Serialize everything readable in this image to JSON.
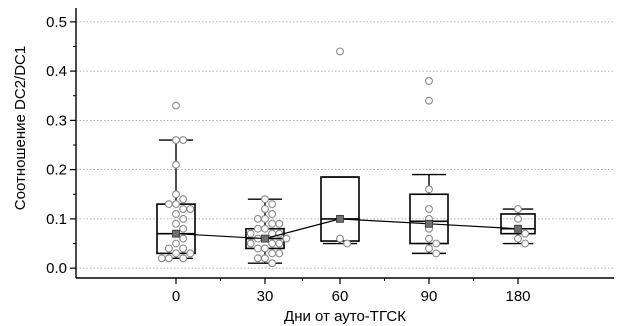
{
  "chart_data": {
    "type": "box",
    "xlabel": "Дни от ауто-ТГСК",
    "ylabel": "Соотношение DC2/DC1",
    "ylim": [
      -0.02,
      0.52
    ],
    "yticks": [
      0.0,
      0.1,
      0.2,
      0.3,
      0.4,
      0.5
    ],
    "ytick_labels": [
      "0.0",
      "0.1",
      "0.2",
      "0.3",
      "0.4",
      "0.5"
    ],
    "categories": [
      "0",
      "30",
      "60",
      "90",
      "180"
    ],
    "grid": "horizontal-dotted",
    "boxes": [
      {
        "category": "0",
        "whisker_low": 0.02,
        "q1": 0.03,
        "median": 0.07,
        "q3": 0.13,
        "whisker_high": 0.26,
        "mean": 0.07
      },
      {
        "category": "30",
        "whisker_low": 0.01,
        "q1": 0.04,
        "median": 0.06,
        "q3": 0.08,
        "whisker_high": 0.14,
        "mean": 0.06
      },
      {
        "category": "60",
        "whisker_low": 0.05,
        "q1": 0.055,
        "median": 0.1,
        "q3": 0.185,
        "whisker_high": 0.185,
        "mean": 0.1
      },
      {
        "category": "90",
        "whisker_low": 0.03,
        "q1": 0.05,
        "median": 0.095,
        "q3": 0.15,
        "whisker_high": 0.19,
        "mean": 0.09
      },
      {
        "category": "180",
        "whisker_low": 0.05,
        "q1": 0.07,
        "median": 0.08,
        "q3": 0.11,
        "whisker_high": 0.12,
        "mean": 0.08
      }
    ],
    "points": [
      {
        "category": "0",
        "values": [
          0.33,
          0.26,
          0.26,
          0.21,
          0.15,
          0.14,
          0.13,
          0.13,
          0.12,
          0.12,
          0.11,
          0.1,
          0.09,
          0.08,
          0.07,
          0.06,
          0.05,
          0.04,
          0.04,
          0.03,
          0.03,
          0.02,
          0.02,
          0.02
        ]
      },
      {
        "category": "30",
        "values": [
          0.14,
          0.13,
          0.12,
          0.11,
          0.1,
          0.1,
          0.09,
          0.09,
          0.08,
          0.08,
          0.07,
          0.07,
          0.07,
          0.06,
          0.06,
          0.06,
          0.05,
          0.05,
          0.05,
          0.04,
          0.04,
          0.03,
          0.03,
          0.02,
          0.02,
          0.01
        ]
      },
      {
        "category": "60",
        "values": [
          0.44,
          0.06,
          0.05
        ]
      },
      {
        "category": "90",
        "values": [
          0.38,
          0.34,
          0.16,
          0.12,
          0.1,
          0.08,
          0.06,
          0.05,
          0.04,
          0.03
        ]
      },
      {
        "category": "180",
        "values": [
          0.12,
          0.1,
          0.08,
          0.07,
          0.06,
          0.05
        ]
      }
    ],
    "mean_line": [
      0.07,
      0.06,
      0.1,
      0.09,
      0.08
    ],
    "colors": {
      "box": "#000000",
      "point_fill": "#ffffff",
      "point_stroke": "#8a8a8a",
      "mean_marker": "#6e6e6e",
      "grid": "#9a9a9a"
    }
  }
}
